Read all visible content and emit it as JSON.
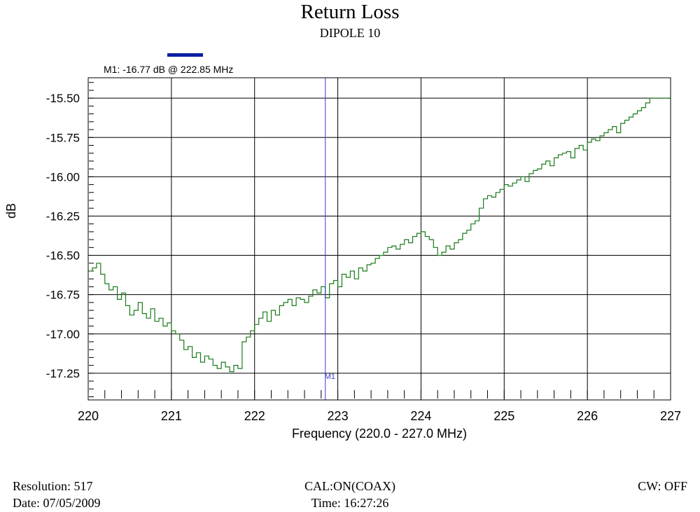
{
  "title": "Return Loss",
  "subtitle": "DIPOLE 10",
  "footer": {
    "resolution": "Resolution:  517",
    "date": "Date: 07/05/2009",
    "cal": "CAL:ON(COAX)",
    "time": "Time: 16:27:26",
    "cw": "CW: OFF"
  },
  "chart_data": {
    "type": "line",
    "xlabel": "Frequency (220.0 - 227.0 MHz)",
    "ylabel": "dB",
    "xlim": [
      220,
      227
    ],
    "ylim": [
      -17.42,
      -15.37
    ],
    "x_ticks": [
      220,
      221,
      222,
      223,
      224,
      225,
      226,
      227
    ],
    "y_ticks": [
      -15.5,
      -15.75,
      -16.0,
      -16.25,
      -16.5,
      -16.75,
      -17.0,
      -17.25
    ],
    "y_tick_labels": [
      "-15.50",
      "-15.75",
      "-16.00",
      "-16.25",
      "-16.50",
      "-16.75",
      "-17.00",
      "-17.25"
    ],
    "grid": true,
    "line_color": "#1a7a1a",
    "marker_color": "#3b3bd6",
    "marker_bar_color": "#0a1fa3",
    "marker": {
      "name": "M1",
      "x": 222.85,
      "label": "M1: -16.77 dB @ 222.85 MHz"
    },
    "series": [
      {
        "x": [
          220.0,
          220.05,
          220.1,
          220.15,
          220.2,
          220.25,
          220.3,
          220.35,
          220.4,
          220.45,
          220.5,
          220.55,
          220.6,
          220.65,
          220.7,
          220.75,
          220.8,
          220.85,
          220.9,
          220.95,
          221.0,
          221.05,
          221.1,
          221.15,
          221.2,
          221.25,
          221.3,
          221.35,
          221.4,
          221.45,
          221.5,
          221.55,
          221.6,
          221.65,
          221.7,
          221.75,
          221.8,
          221.85,
          221.9,
          221.95,
          222.0,
          222.05,
          222.1,
          222.15,
          222.2,
          222.25,
          222.3,
          222.35,
          222.4,
          222.45,
          222.5,
          222.55,
          222.6,
          222.65,
          222.7,
          222.75,
          222.8,
          222.85,
          222.9,
          222.95,
          223.0,
          223.05,
          223.1,
          223.15,
          223.2,
          223.25,
          223.3,
          223.35,
          223.4,
          223.45,
          223.5,
          223.55,
          223.6,
          223.65,
          223.7,
          223.75,
          223.8,
          223.85,
          223.9,
          223.95,
          224.0,
          224.05,
          224.1,
          224.15,
          224.2,
          224.25,
          224.3,
          224.35,
          224.4,
          224.45,
          224.5,
          224.55,
          224.6,
          224.65,
          224.7,
          224.75,
          224.8,
          224.85,
          224.9,
          224.95,
          225.0,
          225.05,
          225.1,
          225.15,
          225.2,
          225.25,
          225.3,
          225.35,
          225.4,
          225.45,
          225.5,
          225.55,
          225.6,
          225.65,
          225.7,
          225.75,
          225.8,
          225.85,
          225.9,
          225.95,
          226.0,
          226.05,
          226.1,
          226.15,
          226.2,
          226.25,
          226.3,
          226.35,
          226.4,
          226.45,
          226.5,
          226.55,
          226.6,
          226.65,
          226.7,
          226.75,
          226.8,
          226.85,
          226.9,
          226.95,
          227.0
        ],
        "y": [
          -16.6,
          -16.58,
          -16.55,
          -16.62,
          -16.68,
          -16.72,
          -16.7,
          -16.78,
          -16.74,
          -16.82,
          -16.88,
          -16.85,
          -16.8,
          -16.87,
          -16.9,
          -16.84,
          -16.92,
          -16.9,
          -16.95,
          -16.93,
          -16.98,
          -17.0,
          -17.04,
          -17.1,
          -17.08,
          -17.15,
          -17.12,
          -17.18,
          -17.14,
          -17.16,
          -17.2,
          -17.22,
          -17.18,
          -17.21,
          -17.24,
          -17.2,
          -17.22,
          -17.05,
          -17.02,
          -16.98,
          -16.94,
          -16.9,
          -16.86,
          -16.92,
          -16.85,
          -16.88,
          -16.82,
          -16.8,
          -16.78,
          -16.82,
          -16.77,
          -16.78,
          -16.8,
          -16.76,
          -16.72,
          -16.74,
          -16.7,
          -16.77,
          -16.68,
          -16.66,
          -16.7,
          -16.62,
          -16.64,
          -16.6,
          -16.65,
          -16.58,
          -16.6,
          -16.56,
          -16.55,
          -16.52,
          -16.5,
          -16.48,
          -16.45,
          -16.44,
          -16.46,
          -16.43,
          -16.4,
          -16.42,
          -16.38,
          -16.36,
          -16.35,
          -16.38,
          -16.4,
          -16.45,
          -16.5,
          -16.48,
          -16.44,
          -16.46,
          -16.42,
          -16.4,
          -16.36,
          -16.34,
          -16.3,
          -16.28,
          -16.2,
          -16.14,
          -16.12,
          -16.13,
          -16.1,
          -16.08,
          -16.05,
          -16.06,
          -16.04,
          -16.02,
          -16.0,
          -16.03,
          -15.98,
          -15.96,
          -15.95,
          -15.92,
          -15.9,
          -15.93,
          -15.88,
          -15.86,
          -15.85,
          -15.84,
          -15.88,
          -15.82,
          -15.8,
          -15.83,
          -15.78,
          -15.76,
          -15.77,
          -15.74,
          -15.72,
          -15.7,
          -15.68,
          -15.72,
          -15.66,
          -15.64,
          -15.62,
          -15.6,
          -15.58,
          -15.56,
          -15.53,
          -15.5,
          -15.5,
          -15.5,
          -15.5,
          -15.5,
          -15.5
        ]
      }
    ]
  }
}
